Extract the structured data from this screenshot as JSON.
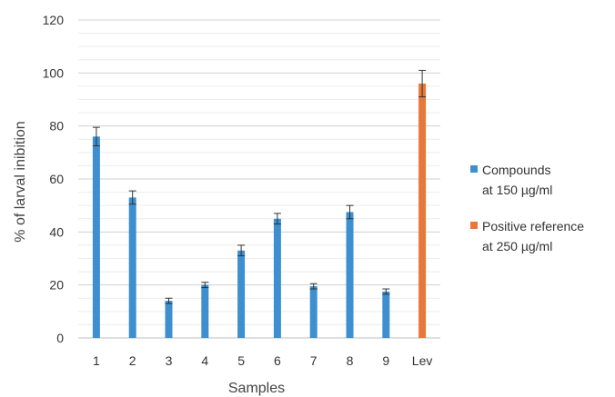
{
  "chart_data": {
    "type": "bar",
    "categories": [
      "1",
      "2",
      "3",
      "4",
      "5",
      "6",
      "7",
      "8",
      "9",
      "Lev"
    ],
    "values": [
      76,
      53,
      14,
      20,
      33,
      45,
      19.5,
      47.5,
      17.5,
      96
    ],
    "errors": [
      3.5,
      2.5,
      1,
      1,
      2,
      2,
      1,
      2.5,
      1,
      5
    ],
    "bar_series": [
      "compounds",
      "compounds",
      "compounds",
      "compounds",
      "compounds",
      "compounds",
      "compounds",
      "compounds",
      "compounds",
      "reference"
    ],
    "series": [
      {
        "key": "compounds",
        "name_line1": "Compounds",
        "name_line2": "at 150 µg/ml",
        "color": "#3E8FD0"
      },
      {
        "key": "reference",
        "name_line1": "Positive reference",
        "name_line2": "at 250 µg/ml",
        "color": "#E8773A"
      }
    ],
    "xlabel": "Samples",
    "ylabel": "% of larval inibition",
    "ylim": [
      0,
      120
    ],
    "yticks": [
      "0",
      "20",
      "40",
      "60",
      "80",
      "100",
      "120"
    ],
    "grid": true,
    "legend_position": "right"
  }
}
